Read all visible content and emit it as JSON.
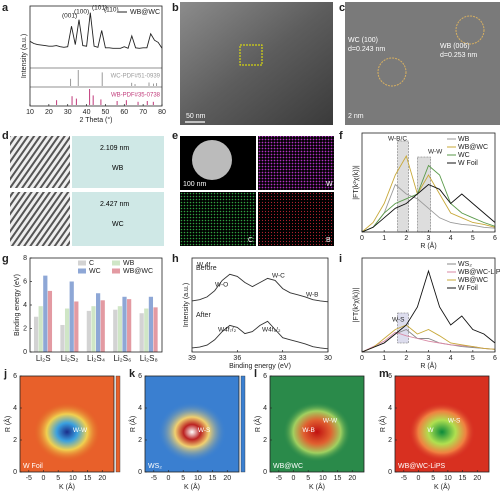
{
  "chart_data": [
    {
      "type": "line",
      "panel": "a",
      "xlabel": "2 Theta (°)",
      "ylabel": "Intensity (a.u.)",
      "xlim": [
        10,
        80
      ],
      "xticks": [
        10,
        20,
        30,
        40,
        50,
        60,
        70,
        80
      ],
      "ylim": [
        0,
        10
      ],
      "annotations": [
        "(001)",
        "(100)",
        "(101)",
        "(110)"
      ],
      "x": [
        10,
        12,
        14,
        16,
        18,
        20,
        22,
        24,
        26,
        28,
        30,
        32,
        34,
        36,
        38,
        40,
        42,
        44,
        46,
        48,
        50,
        52,
        54,
        56,
        58,
        60,
        62,
        64,
        66,
        68,
        70,
        72,
        74,
        76,
        78,
        80
      ],
      "series": [
        {
          "name": "WB@WC",
          "color": "#222222",
          "values": [
            4.2,
            3.8,
            3.6,
            3.5,
            3.4,
            3.3,
            3.3,
            3.4,
            3.2,
            3.1,
            3.2,
            7.0,
            3.6,
            8.2,
            3.4,
            3.3,
            9.5,
            3.3,
            3.1,
            6.2,
            3.0,
            3.0,
            2.9,
            2.9,
            2.9,
            3.2,
            2.9,
            5.2,
            3.0,
            2.9,
            3.0,
            3.0,
            5.6,
            4.4,
            4.0,
            2.9
          ]
        }
      ],
      "references": [
        {
          "name": "WC-PDF#51-0939",
          "color": "#9a9a9a",
          "x": [
            31.5,
            35.6,
            48.3,
            63.9,
            65.7,
            73.1,
            75.5,
            77.1
          ],
          "values": [
            45,
            100,
            85,
            20,
            12,
            22,
            15,
            18
          ]
        },
        {
          "name": "WB-PDF#35-0738",
          "color": "#c03a7a",
          "x": [
            24.1,
            32.3,
            34.6,
            41.6,
            43.5,
            47.6,
            56.2,
            61.1,
            67.3,
            72.2,
            75.4
          ],
          "values": [
            30,
            55,
            40,
            100,
            60,
            35,
            25,
            30,
            20,
            25,
            20
          ]
        }
      ]
    },
    {
      "type": "line",
      "panel": "f",
      "xlabel": "R (Å)",
      "ylabel": "|FT(k²χ(k))|",
      "xlim": [
        0,
        6
      ],
      "xticks": [
        0,
        1,
        2,
        3,
        4,
        5,
        6
      ],
      "ylim": [
        0,
        10
      ],
      "legend": "upper right",
      "annotations": [
        "W-B/C",
        "W-W"
      ],
      "x": [
        0,
        0.5,
        1,
        1.5,
        2,
        2.5,
        3,
        3.5,
        4,
        4.5,
        5,
        5.5,
        6
      ],
      "series": [
        {
          "name": "WB",
          "color": "#9a9a9a",
          "values": [
            0,
            0.5,
            2,
            5,
            4,
            3.5,
            2.5,
            1.5,
            1,
            0.8,
            0.7,
            0.5,
            0.4
          ]
        },
        {
          "name": "WB@WC",
          "color": "#c8a93a",
          "values": [
            0,
            1,
            3,
            6,
            8,
            4,
            6,
            4,
            2,
            1.5,
            1,
            0.8,
            0.5
          ]
        },
        {
          "name": "WC",
          "color": "#5a9a4a",
          "values": [
            0,
            0.5,
            2,
            3,
            3.5,
            4,
            7,
            6,
            3,
            2,
            1.5,
            1,
            0.6
          ]
        },
        {
          "name": "W Foil",
          "color": "#111111",
          "values": [
            0,
            0.5,
            1.5,
            2.5,
            3,
            4,
            5,
            4.5,
            3,
            4,
            3,
            2,
            1
          ]
        }
      ]
    },
    {
      "type": "bar",
      "panel": "g",
      "ylabel": "Binding energy (eV)",
      "categories": [
        "Li₂S",
        "Li₂S₂",
        "Li₂S₄",
        "Li₂S₆",
        "Li₂S₈"
      ],
      "ylim": [
        0,
        8
      ],
      "yticks": [
        0,
        2,
        4,
        6,
        8
      ],
      "legend": "upper right",
      "series": [
        {
          "name": "C",
          "color": "#d3d3d3",
          "values": [
            3.0,
            2.3,
            3.5,
            3.6,
            3.3
          ]
        },
        {
          "name": "WB",
          "color": "#cfe6c6",
          "values": [
            3.9,
            3.7,
            3.9,
            3.9,
            3.7
          ]
        },
        {
          "name": "WC",
          "color": "#8ea7d6",
          "values": [
            6.5,
            6.0,
            5.0,
            4.7,
            4.7
          ]
        },
        {
          "name": "WB@WC",
          "color": "#e39aa2",
          "values": [
            5.2,
            4.3,
            4.4,
            4.5,
            3.8
          ]
        }
      ]
    },
    {
      "type": "line",
      "panel": "h",
      "xlabel": "Binding energy (eV)",
      "ylabel": "Intensity (a.u.)",
      "xlim": [
        39,
        30
      ],
      "xticks": [
        39,
        36,
        33,
        30
      ],
      "ylim": [
        0,
        10
      ],
      "annotations": [
        "W 4f",
        "W-O",
        "W-C",
        "W-B",
        "W4f₇/₂",
        "W4f₅/₂"
      ],
      "x": [
        39,
        38.5,
        38,
        37.5,
        37,
        36.5,
        36,
        35.5,
        35,
        34.5,
        34,
        33.5,
        33,
        32.5,
        32,
        31.5,
        31,
        30.5,
        30
      ],
      "series": [
        {
          "name": "Before",
          "color": "#333333",
          "values": [
            0.5,
            0.8,
            1.5,
            3,
            5.5,
            7,
            6.5,
            5,
            4,
            5,
            6,
            5.5,
            3.5,
            2.5,
            2,
            1.5,
            0.8,
            0.5,
            0.3
          ]
        },
        {
          "name": "After",
          "color": "#333333",
          "values": [
            0.5,
            0.7,
            1.2,
            2.5,
            4.5,
            6,
            5.5,
            4,
            4.5,
            6,
            7,
            5,
            3,
            2.5,
            2,
            1.5,
            0.8,
            0.5,
            0.3
          ]
        }
      ]
    },
    {
      "type": "line",
      "panel": "i",
      "xlabel": "R (Å)",
      "ylabel": "|FT(k²χ(k))|",
      "xlim": [
        0,
        6
      ],
      "xticks": [
        0,
        1,
        2,
        3,
        4,
        5,
        6
      ],
      "ylim": [
        0,
        10
      ],
      "legend": "upper right",
      "annotations": [
        "W-S"
      ],
      "x": [
        0,
        0.5,
        1,
        1.5,
        2,
        2.5,
        3,
        3.5,
        4,
        4.5,
        5,
        5.5,
        6
      ],
      "series": [
        {
          "name": "WS₂",
          "color": "#8a8a8a",
          "values": [
            0,
            0.5,
            1,
            2,
            2.5,
            1.5,
            1.5,
            1,
            0.8,
            0.6,
            0.5,
            0.4,
            0.3
          ]
        },
        {
          "name": "WB@WC-LiPS",
          "color": "#d88aa5",
          "values": [
            0,
            0.6,
            1.2,
            2.2,
            1.8,
            1.5,
            1.2,
            1,
            0.8,
            0.7,
            0.6,
            0.4,
            0.3
          ]
        },
        {
          "name": "WB@WC",
          "color": "#c8a93a",
          "values": [
            0,
            0.5,
            1.5,
            2.5,
            3,
            2,
            2.5,
            1.8,
            1,
            0.8,
            0.6,
            0.4,
            0.3
          ]
        },
        {
          "name": "W Foil",
          "color": "#111111",
          "values": [
            0,
            0.5,
            1,
            2,
            3,
            5,
            9,
            5,
            3,
            4,
            2.5,
            2,
            1
          ]
        }
      ]
    }
  ],
  "panels": [
    {
      "letter": "b",
      "texts": [
        "50 nm"
      ]
    },
    {
      "letter": "c",
      "texts": [
        "WC (100)",
        "d=0.243 nm",
        "WB (006)",
        "d=0.253 nm",
        "2 nm"
      ]
    },
    {
      "letter": "d",
      "texts": [
        "2.109 nm",
        "WB",
        "2.427 nm",
        "WC"
      ]
    },
    {
      "letter": "e",
      "texts": [
        "100 nm",
        "W",
        "C",
        "B"
      ]
    }
  ],
  "wavelet_axes": {
    "xlabel": "K (Å)",
    "ylabel": "R (Å)",
    "xlim": [
      -8,
      24
    ],
    "xticks": [
      -5,
      0,
      5,
      10,
      15,
      20
    ],
    "ylim": [
      0,
      6
    ],
    "yticks": [
      0,
      2,
      4,
      6
    ]
  },
  "wavelets": [
    {
      "letter": "j",
      "label": "W Foil",
      "annotations": [
        "W-W"
      ]
    },
    {
      "letter": "k",
      "label": "WS₂",
      "annotations": [
        "W-S"
      ]
    },
    {
      "letter": "l",
      "label": "WB@WC",
      "annotations": [
        "W-B",
        "W-W"
      ]
    },
    {
      "letter": "m",
      "label": "WB@WC-LiPS",
      "annotations": [
        "W",
        "W-S"
      ]
    }
  ]
}
